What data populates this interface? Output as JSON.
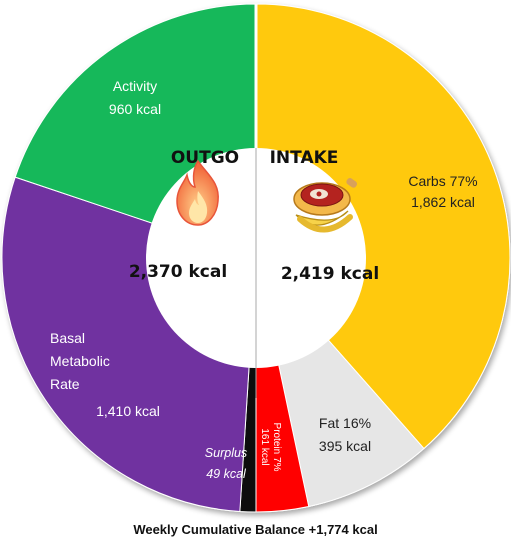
{
  "chart_data": {
    "type": "pie",
    "variant": "donut",
    "outgo": {
      "header": "OUTGO",
      "total_label": "2,370 kcal",
      "segments": [
        {
          "label": "Surplus",
          "value_label": "49 kcal",
          "value": 49,
          "color": "#0a0a0a"
        },
        {
          "label": "Basal Metabolic Rate",
          "value_label": "1,410 kcal",
          "value": 1410,
          "color": "#7030a0"
        },
        {
          "label": "Activity",
          "value_label": "960 kcal",
          "value": 960,
          "color": "#12b85a"
        }
      ]
    },
    "intake": {
      "header": "INTAKE",
      "total_label": "2,419 kcal",
      "segments": [
        {
          "label": "Carbs 77%",
          "value_label": "1,862 kcal",
          "value": 1862,
          "color": "#ffc90e"
        },
        {
          "label": "Fat 16%",
          "value_label": "395 kcal",
          "value": 395,
          "color": "#e6e6e6"
        },
        {
          "label": "Protein 7%",
          "value_label": "161 kcal",
          "value": 161,
          "color": "#ff0000"
        }
      ]
    },
    "footer": "Weekly Cumulative Balance +1,774 kcal"
  },
  "icons": {
    "outgo": "flame-icon",
    "intake": "food-plate-icon"
  }
}
